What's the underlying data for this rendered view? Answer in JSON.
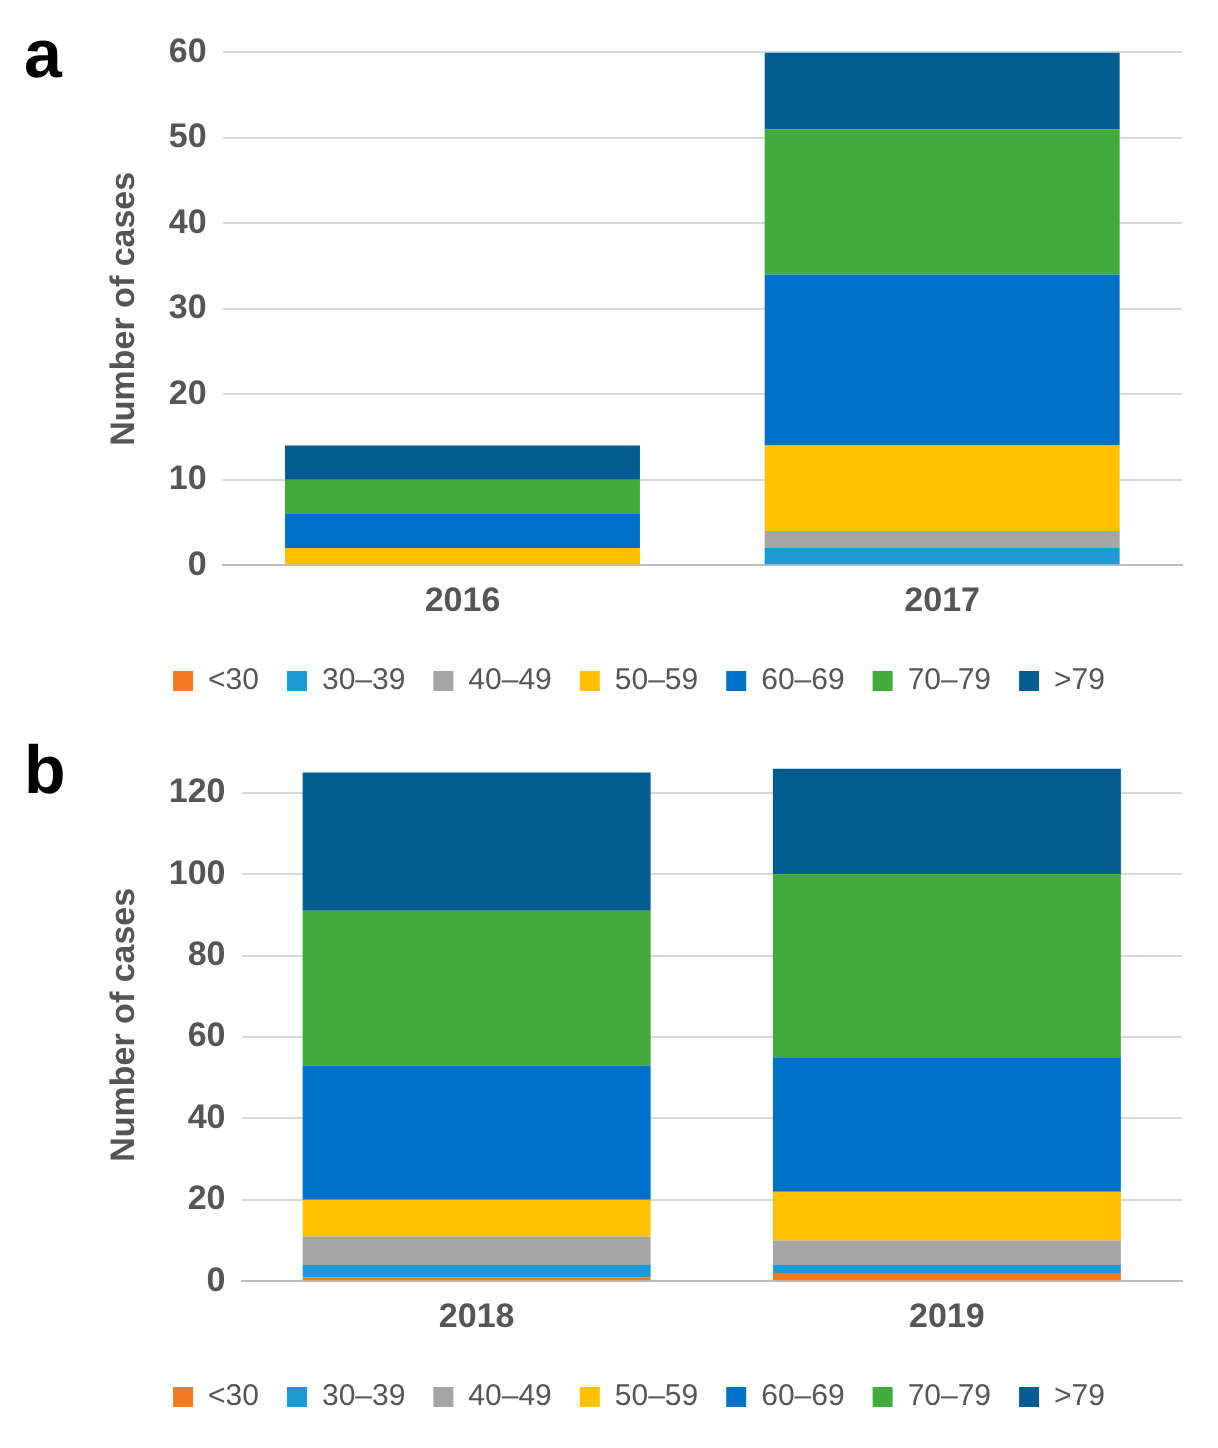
{
  "chart_data": [
    {
      "type": "bar",
      "title": "a",
      "ylabel": "Number of cases",
      "categories": [
        "2016",
        "2017"
      ],
      "stacked": true,
      "ylim": [
        0,
        60
      ],
      "yticks": [
        0,
        10,
        20,
        30,
        40,
        50,
        60
      ],
      "grid": "y",
      "legend": "bottom",
      "series": [
        {
          "name": "<30",
          "color": "#f47b20",
          "values": [
            0,
            0
          ]
        },
        {
          "name": "30–39",
          "color": "#1b9ad6",
          "values": [
            0,
            2
          ]
        },
        {
          "name": "40–49",
          "color": "#a5a5a5",
          "values": [
            0,
            2
          ]
        },
        {
          "name": "50–59",
          "color": "#ffc000",
          "values": [
            2,
            10
          ]
        },
        {
          "name": "60–69",
          "color": "#0070c8",
          "values": [
            4,
            20
          ]
        },
        {
          "name": "70–79",
          "color": "#43aa3c",
          "values": [
            4,
            17
          ]
        },
        {
          "name": ">79",
          "color": "#025b91",
          "values": [
            4,
            9
          ]
        }
      ]
    },
    {
      "type": "bar",
      "title": "b",
      "ylabel": "Number of cases",
      "categories": [
        "2018",
        "2019"
      ],
      "stacked": true,
      "ylim": [
        0,
        126
      ],
      "yticks": [
        0,
        20,
        40,
        60,
        80,
        100,
        120
      ],
      "grid": "y",
      "legend": "bottom",
      "series": [
        {
          "name": "<30",
          "color": "#f47b20",
          "values": [
            1,
            2
          ]
        },
        {
          "name": "30–39",
          "color": "#1b9ad6",
          "values": [
            3,
            2
          ]
        },
        {
          "name": "40–49",
          "color": "#a5a5a5",
          "values": [
            7,
            6
          ]
        },
        {
          "name": "50–59",
          "color": "#ffc000",
          "values": [
            9,
            12
          ]
        },
        {
          "name": "60–69",
          "color": "#0070c8",
          "values": [
            33,
            33
          ]
        },
        {
          "name": "70–79",
          "color": "#43aa3c",
          "values": [
            38,
            45
          ]
        },
        {
          "name": ">79",
          "color": "#025b91",
          "values": [
            34,
            26
          ]
        }
      ]
    }
  ]
}
